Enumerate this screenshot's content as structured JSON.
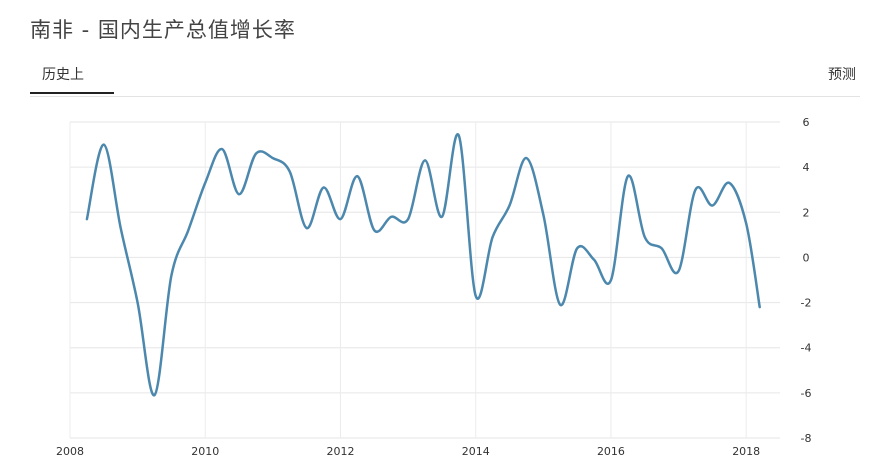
{
  "header": {
    "title": "南非 - 国内生产总值增长率"
  },
  "tabs": [
    {
      "label": "历史上",
      "active": true
    },
    {
      "label": "预测",
      "active": false
    }
  ],
  "chart_data": {
    "type": "line",
    "x_ticks": [
      "2008",
      "2010",
      "2012",
      "2014",
      "2016",
      "2018"
    ],
    "y_ticks": [
      "6",
      "4",
      "2",
      "0",
      "-2",
      "-4",
      "-6",
      "-8"
    ],
    "xlim": [
      2008,
      2018.5
    ],
    "ylim": [
      -8,
      6
    ],
    "grid": true,
    "color": "#4c88ad",
    "series": [
      {
        "x": [
          2008.25,
          2008.5,
          2008.75,
          2009.0,
          2009.25,
          2009.5,
          2009.75,
          2010.0,
          2010.25,
          2010.5,
          2010.75,
          2011.0,
          2011.25,
          2011.5,
          2011.75,
          2012.0,
          2012.25,
          2012.5,
          2012.75,
          2013.0,
          2013.25,
          2013.5,
          2013.75,
          2014.0,
          2014.25,
          2014.5,
          2014.75,
          2015.0,
          2015.25,
          2015.5,
          2015.75,
          2016.0,
          2016.25,
          2016.5,
          2016.75,
          2017.0,
          2017.25,
          2017.5,
          2017.75,
          2018.0,
          2018.2
        ],
        "values": [
          1.7,
          5.0,
          1.3,
          -2.0,
          -6.1,
          -0.8,
          1.2,
          3.3,
          4.8,
          2.8,
          4.6,
          4.4,
          3.8,
          1.3,
          3.1,
          1.7,
          3.6,
          1.2,
          1.8,
          1.7,
          4.3,
          1.8,
          5.4,
          -1.7,
          0.9,
          2.3,
          4.4,
          1.9,
          -2.1,
          0.4,
          -0.1,
          -1.0,
          3.6,
          0.9,
          0.4,
          -0.6,
          3.0,
          2.3,
          3.3,
          1.5,
          -2.2
        ]
      }
    ]
  }
}
